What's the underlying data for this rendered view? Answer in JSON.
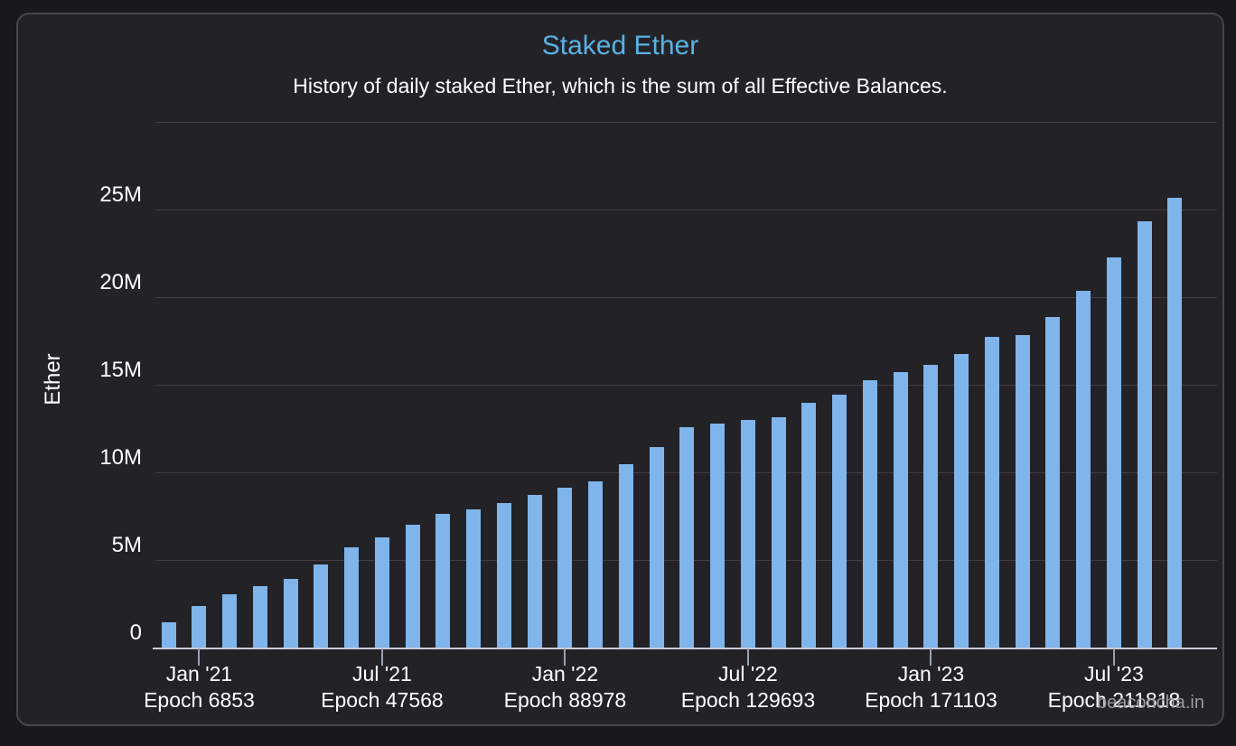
{
  "page": {
    "watermark": "beaconcha.in"
  },
  "colors": {
    "page_background": "#19181c",
    "card_background": "#232227",
    "card_border": "#47464b",
    "title": "#59b1e4",
    "text": "#ffffff",
    "bar": "#7fb5ea",
    "gridline": "#443d43",
    "axis_line": "#c9cdd9",
    "watermark": "#9a9aa0"
  },
  "chart_data": {
    "type": "bar",
    "title": "Staked Ether",
    "subtitle": "History of daily staked Ether, which is the sum of all Effective Balances.",
    "xlabel": "",
    "ylabel": "Ether",
    "y_unit": "M",
    "ylim_millions": [
      0,
      30
    ],
    "y_gridline_step_millions": 5,
    "y_tick_labels": [
      "0",
      "5M",
      "10M",
      "15M",
      "20M",
      "25M"
    ],
    "grid": true,
    "legend": "none",
    "values_millions": [
      1.5,
      2.4,
      3.1,
      3.55,
      3.95,
      4.8,
      5.75,
      6.35,
      7.05,
      7.7,
      7.95,
      8.3,
      8.75,
      9.15,
      9.55,
      10.5,
      11.5,
      12.65,
      12.85,
      13.05,
      13.2,
      14.0,
      14.5,
      15.3,
      15.75,
      16.2,
      16.8,
      17.8,
      17.9,
      18.9,
      20.4,
      22.3,
      24.4,
      25.7
    ],
    "x_ticks": [
      {
        "index": 1,
        "line1": "Jan '21",
        "line2": "Epoch 6853"
      },
      {
        "index": 7,
        "line1": "Jul '21",
        "line2": "Epoch 47568"
      },
      {
        "index": 13,
        "line1": "Jan '22",
        "line2": "Epoch 88978"
      },
      {
        "index": 19,
        "line1": "Jul '22",
        "line2": "Epoch 129693"
      },
      {
        "index": 25,
        "line1": "Jan '23",
        "line2": "Epoch 171103"
      },
      {
        "index": 31,
        "line1": "Jul '23",
        "line2": "Epoch 211818"
      }
    ]
  }
}
